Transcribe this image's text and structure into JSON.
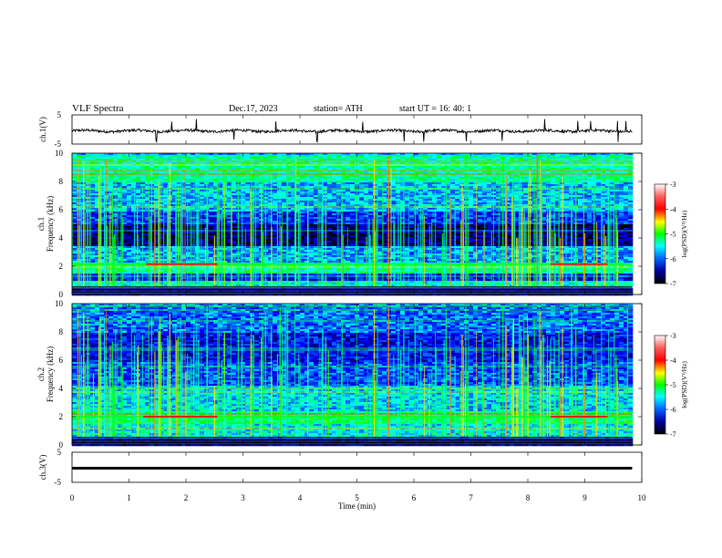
{
  "header": {
    "title": "VLF  Spectra",
    "date": "Dec.17, 2023",
    "station": "station= ATH",
    "start": "start  UT  =    16: 40: 1"
  },
  "colors": {
    "spectrum_low": "#000080",
    "spectrum_blue": "#0000ff",
    "spectrum_cyan": "#00ffff",
    "spectrum_green": "#00ff00",
    "spectrum_yellow": "#ffff00",
    "spectrum_red": "#ff0000",
    "colorbar_top": "#ffffff",
    "colorbar_bottom": "#000000"
  },
  "chart_data": [
    {
      "type": "line",
      "name": "ch1-waveform",
      "ylabel": "ch.1(V)",
      "yticks": [
        "5",
        "-5"
      ],
      "ylim": [
        -5,
        5
      ],
      "xlim": [
        0,
        10
      ],
      "baseline_v": -0.5,
      "spike_times_min": [
        1.48,
        1.75,
        2.18,
        2.84,
        3.58,
        4.3,
        5.1,
        5.83,
        6.17,
        6.92,
        7.55,
        8.3,
        8.88,
        9.1,
        9.58,
        9.72
      ]
    },
    {
      "type": "heatmap",
      "name": "ch1-spectrogram",
      "ylabel": "Frequency  (kHz)",
      "channel_label": "ch.1",
      "yticks": [
        "10",
        "8",
        "6",
        "4",
        "2",
        "0"
      ],
      "ylim": [
        0,
        10
      ],
      "xlim": [
        0,
        10
      ],
      "bands_khz": [
        {
          "from": 0,
          "to": 0.5,
          "level": -6.5
        },
        {
          "from": 0.5,
          "to": 1.0,
          "level": -5.2
        },
        {
          "from": 1.0,
          "to": 1.6,
          "level": -6.2
        },
        {
          "from": 1.6,
          "to": 2.3,
          "level": -5.0
        },
        {
          "from": 2.3,
          "to": 3.5,
          "level": -5.6
        },
        {
          "from": 3.5,
          "to": 5.0,
          "level": -6.6
        },
        {
          "from": 5.0,
          "to": 6.0,
          "level": -6.0
        },
        {
          "from": 6.0,
          "to": 8.0,
          "level": -5.5
        },
        {
          "from": 8.0,
          "to": 10.0,
          "level": -5.0
        }
      ],
      "tone_khz": 2.15,
      "tone_segments_min": [
        [
          1.3,
          2.55
        ],
        [
          8.4,
          9.4
        ]
      ]
    },
    {
      "type": "heatmap",
      "name": "ch2-spectrogram",
      "ylabel": "Frequency  (kHz)",
      "channel_label": "ch.2",
      "yticks": [
        "10",
        "8",
        "6",
        "4",
        "2",
        "0"
      ],
      "ylim": [
        0,
        10
      ],
      "xlim": [
        0,
        10
      ],
      "bands_khz": [
        {
          "from": 0,
          "to": 0.5,
          "level": -6.4
        },
        {
          "from": 0.5,
          "to": 1.5,
          "level": -5.3
        },
        {
          "from": 1.5,
          "to": 2.5,
          "level": -4.8
        },
        {
          "from": 2.5,
          "to": 4.2,
          "level": -5.4
        },
        {
          "from": 4.2,
          "to": 6.0,
          "level": -5.9
        },
        {
          "from": 6.0,
          "to": 8.0,
          "level": -6.2
        },
        {
          "from": 8.0,
          "to": 10.0,
          "level": -5.8
        }
      ],
      "tone_khz": 2.0,
      "tone_segments_min": [
        [
          1.25,
          2.55
        ],
        [
          8.4,
          9.4
        ]
      ]
    },
    {
      "type": "line",
      "name": "ch3-waveform",
      "ylabel": "ch.3(V)",
      "yticks": [
        "5",
        "-5"
      ],
      "ylim": [
        -5,
        5
      ],
      "xlim": [
        0,
        10
      ],
      "baseline_v": -0.3
    }
  ],
  "colorbar": {
    "label": "log(PSD)(V²/Hz)",
    "ticks": [
      "-3",
      "-4",
      "-5",
      "-6",
      "-7"
    ],
    "range": [
      -7,
      -3
    ]
  },
  "xaxis": {
    "label": "Time  (min)",
    "ticks": [
      "0",
      "1",
      "2",
      "3",
      "4",
      "5",
      "6",
      "7",
      "8",
      "9",
      "10"
    ],
    "range": [
      0,
      10
    ]
  }
}
